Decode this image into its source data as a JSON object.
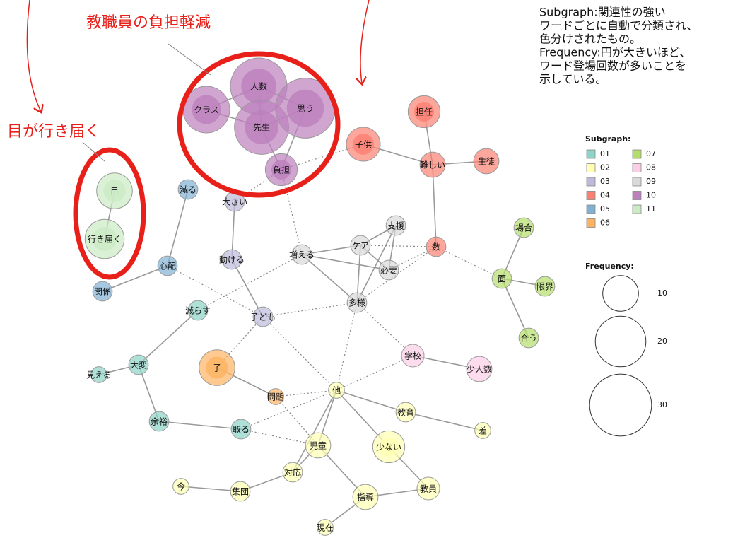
{
  "annotations": [
    "教職員の負担軽減",
    "目が行き届く"
  ],
  "note": [
    "Subgraph:関連性の強い",
    "ワードごとに自動で分類され、",
    "色分けされたもの。",
    "Frequency:円が大きいほど、",
    "ワード登場回数が多いことを",
    "示している。"
  ],
  "legend": {
    "subgraph_title": "Subgraph:",
    "subgraphs": [
      {
        "label": "01",
        "color": "#8dd3c7"
      },
      {
        "label": "02",
        "color": "#ffffb3"
      },
      {
        "label": "03",
        "color": "#bebada"
      },
      {
        "label": "04",
        "color": "#fb8072"
      },
      {
        "label": "05",
        "color": "#80b1d3"
      },
      {
        "label": "06",
        "color": "#fdb462"
      },
      {
        "label": "07",
        "color": "#b3de69"
      },
      {
        "label": "08",
        "color": "#fccde5"
      },
      {
        "label": "09",
        "color": "#d9d9d9"
      },
      {
        "label": "10",
        "color": "#bc80bd"
      },
      {
        "label": "11",
        "color": "#ccebc5"
      }
    ],
    "frequency_title": "Frequency:",
    "frequencies": [
      10,
      20,
      30
    ]
  },
  "nodes": [
    {
      "label": "人数",
      "subgraph": "10",
      "frequency": 25
    },
    {
      "label": "クラス",
      "subgraph": "10",
      "frequency": 17
    },
    {
      "label": "先生",
      "subgraph": "10",
      "frequency": 23
    },
    {
      "label": "思う",
      "subgraph": "10",
      "frequency": 28
    },
    {
      "label": "負担",
      "subgraph": "10",
      "frequency": 8
    },
    {
      "label": "目",
      "subgraph": "11",
      "frequency": 10
    },
    {
      "label": "行き届く",
      "subgraph": "11",
      "frequency": 12
    },
    {
      "label": "減る",
      "subgraph": "05",
      "frequency": 3
    },
    {
      "label": "心配",
      "subgraph": "05",
      "frequency": 3
    },
    {
      "label": "関係",
      "subgraph": "05",
      "frequency": 3
    },
    {
      "label": "大きい",
      "subgraph": "03",
      "frequency": 3
    },
    {
      "label": "動ける",
      "subgraph": "03",
      "frequency": 3
    },
    {
      "label": "子ども",
      "subgraph": "03",
      "frequency": 3
    },
    {
      "label": "子供",
      "subgraph": "04",
      "frequency": 9
    },
    {
      "label": "担任",
      "subgraph": "04",
      "frequency": 8
    },
    {
      "label": "難しい",
      "subgraph": "04",
      "frequency": 5
    },
    {
      "label": "生徒",
      "subgraph": "04",
      "frequency": 5
    },
    {
      "label": "数",
      "subgraph": "04",
      "frequency": 3
    },
    {
      "label": "支援",
      "subgraph": "09",
      "frequency": 3
    },
    {
      "label": "ケア",
      "subgraph": "09",
      "frequency": 3
    },
    {
      "label": "増える",
      "subgraph": "09",
      "frequency": 3
    },
    {
      "label": "必要",
      "subgraph": "09",
      "frequency": 3
    },
    {
      "label": "多様",
      "subgraph": "09",
      "frequency": 3
    },
    {
      "label": "場合",
      "subgraph": "07",
      "frequency": 3
    },
    {
      "label": "面",
      "subgraph": "07",
      "frequency": 3
    },
    {
      "label": "限界",
      "subgraph": "07",
      "frequency": 3
    },
    {
      "label": "合う",
      "subgraph": "07",
      "frequency": 3
    },
    {
      "label": "減らす",
      "subgraph": "01",
      "frequency": 3
    },
    {
      "label": "大変",
      "subgraph": "01",
      "frequency": 3
    },
    {
      "label": "見える",
      "subgraph": "01",
      "frequency": 2
    },
    {
      "label": "余裕",
      "subgraph": "01",
      "frequency": 3
    },
    {
      "label": "取る",
      "subgraph": "01",
      "frequency": 3
    },
    {
      "label": "子",
      "subgraph": "06",
      "frequency": 10
    },
    {
      "label": "問題",
      "subgraph": "06",
      "frequency": 2
    },
    {
      "label": "他",
      "subgraph": "02",
      "frequency": 2
    },
    {
      "label": "教育",
      "subgraph": "02",
      "frequency": 3
    },
    {
      "label": "差",
      "subgraph": "02",
      "frequency": 2
    },
    {
      "label": "少ない",
      "subgraph": "02",
      "frequency": 8
    },
    {
      "label": "児童",
      "subgraph": "02",
      "frequency": 5
    },
    {
      "label": "対応",
      "subgraph": "02",
      "frequency": 3
    },
    {
      "label": "今",
      "subgraph": "02",
      "frequency": 2
    },
    {
      "label": "集団",
      "subgraph": "02",
      "frequency": 3
    },
    {
      "label": "指導",
      "subgraph": "02",
      "frequency": 5
    },
    {
      "label": "教員",
      "subgraph": "02",
      "frequency": 4
    },
    {
      "label": "現在",
      "subgraph": "02",
      "frequency": 2
    },
    {
      "label": "学校",
      "subgraph": "08",
      "frequency": 4
    },
    {
      "label": "少人数",
      "subgraph": "08",
      "frequency": 5
    }
  ]
}
